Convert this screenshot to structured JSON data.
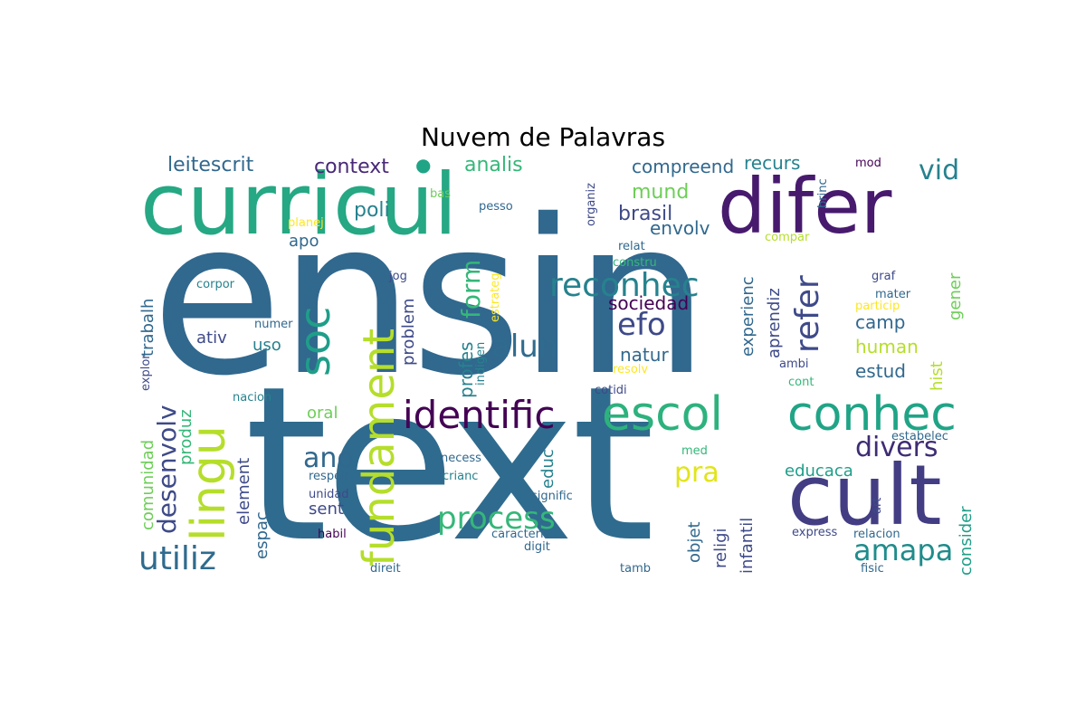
{
  "title": "Nuvem de Palavras",
  "words": {
    "ensin": "ensin",
    "text": "text",
    "curricul": "curricul",
    "difer": "difer",
    "cult": "cult",
    "escol": "escol",
    "conhec": "conhec",
    "identific": "identific",
    "fundament": "fundament",
    "lingu": "lingu",
    "soc": "soc",
    "reconhec": "reconhec",
    "process": "process",
    "alun": "alun",
    "refer": "refer",
    "efo": "efo",
    "amapa": "amapa",
    "divers": "divers",
    "ano": "ano",
    "utiliz": "utiliz",
    "desenvolv": "desenvolv",
    "vid": "vid",
    "pra": "pra",
    "form": "form",
    "leitescrit": "leitescrit",
    "context": "context",
    "analis": "analis",
    "compreend": "compreend",
    "recurs": "recurs",
    "mund": "mund",
    "brasil": "brasil",
    "envolv": "envolv",
    "poli": "poli",
    "apo": "apo",
    "sociedad": "sociedad",
    "camp": "camp",
    "human": "human",
    "estud": "estud",
    "natur": "natur",
    "ativ": "ativ",
    "uso": "uso",
    "oral": "oral",
    "sent": "sent",
    "educacao": "educaca",
    "trabalh": "trabalh",
    "produz": "produz",
    "comunidad": "comunidad",
    "element": "element",
    "espac": "espac",
    "problem": "problem",
    "profes": "profes",
    "educ": "educ",
    "experienc": "experienc",
    "aprendiz": "aprendiz",
    "objet": "objet",
    "religi": "religi",
    "infantil": "infantil",
    "hist": "hist",
    "gener": "gener",
    "consider": "consider",
    "mod": "mod",
    "brinc": "brinc",
    "organiz": "organiz",
    "bas": "bas",
    "pesso": "pesso",
    "planej": "planej",
    "compar": "compar",
    "relat": "relat",
    "constru": "constru",
    "estrateg": "estrateg",
    "corpor": "corpor",
    "jog": "jog",
    "graf": "graf",
    "mater": "mater",
    "particip": "particip",
    "numer": "numer",
    "indigen": "indigen",
    "explor": "explor",
    "ambi": "ambi",
    "resolv": "resolv",
    "cont": "cont",
    "cotidi": "cotidi",
    "nacion": "nacion",
    "estabelec": "estabelec",
    "med": "med",
    "necess": "necess",
    "crianc": "crianc",
    "respeit": "respeit",
    "unidad": "unidad",
    "signific": "signific",
    "art": "art",
    "habil": "habil",
    "caracteris": "caracteris",
    "express": "express",
    "relacion": "relacion",
    "digit": "digit",
    "direit": "direit",
    "tamb": "tamb",
    "fisic": "fisic"
  },
  "colors": {
    "dark_purple": "#440154",
    "purple": "#482878",
    "indigo": "#3e4a89",
    "blue": "#31688e",
    "teal_blue": "#26828e",
    "teal": "#1f9e89",
    "green": "#35b779",
    "light_green": "#6ece58",
    "lime": "#b5de2b",
    "yellow": "#fde725"
  }
}
